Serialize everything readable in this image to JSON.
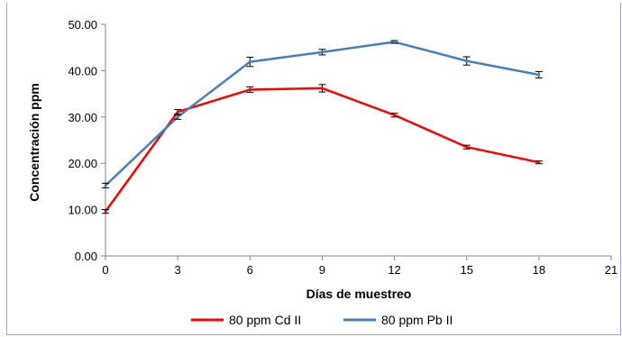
{
  "chart_data": {
    "type": "line",
    "xlabel": "Días de muestreo",
    "ylabel": "Concentración ppm",
    "xlim": [
      0,
      21
    ],
    "ylim": [
      0,
      50
    ],
    "x_ticks": [
      "0",
      "3",
      "6",
      "9",
      "12",
      "15",
      "18",
      "21"
    ],
    "y_ticks": [
      "0.00",
      "10.00",
      "20.00",
      "30.00",
      "40.00",
      "50.00"
    ],
    "grid": false,
    "legend_position": "bottom",
    "x": [
      0,
      3,
      6,
      9,
      12,
      15,
      18
    ],
    "series": [
      {
        "name": "80 ppm Cd II",
        "color": "#ff0000",
        "values": [
          9.6,
          31.1,
          35.9,
          36.2,
          30.4,
          23.5,
          20.2
        ],
        "errors": [
          0.4,
          0.5,
          0.6,
          0.8,
          0.4,
          0.4,
          0.3
        ]
      },
      {
        "name": "80 ppm Pb II",
        "color": "#4a7ebb",
        "values": [
          15.2,
          30.0,
          41.9,
          44.0,
          46.2,
          42.1,
          39.1
        ],
        "errors": [
          0.5,
          0.5,
          1.0,
          0.6,
          0.3,
          0.9,
          0.7
        ]
      }
    ]
  }
}
